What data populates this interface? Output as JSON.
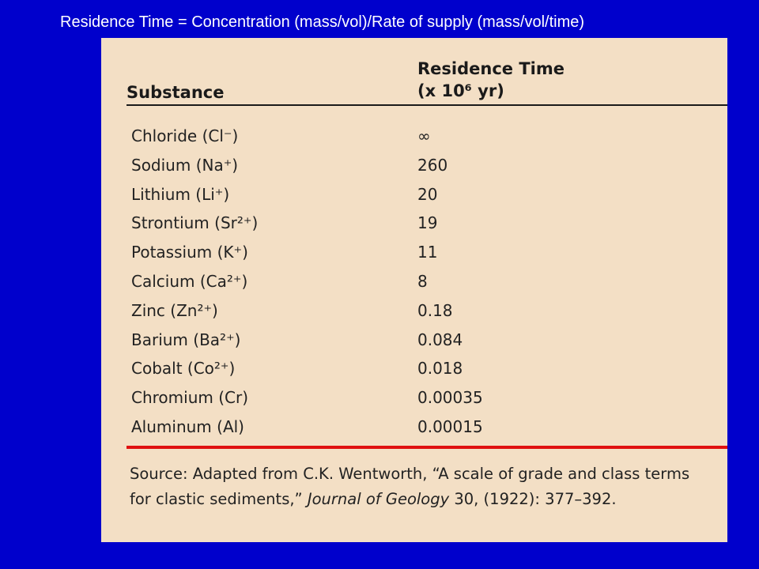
{
  "slide": {
    "title": "Residence Time = Concentration (mass/vol)/Rate of supply (mass/vol/time)"
  },
  "table": {
    "header_substance": "Substance",
    "header_residence_line1": "Residence Time",
    "header_residence_line2": "(x 10⁶ yr)",
    "rows": [
      {
        "substance": "Chloride (Cl⁻)",
        "residence": "∞"
      },
      {
        "substance": "Sodium (Na⁺)",
        "residence": "260"
      },
      {
        "substance": "Lithium (Li⁺)",
        "residence": "20"
      },
      {
        "substance": "Strontium (Sr²⁺)",
        "residence": "19"
      },
      {
        "substance": "Potassium (K⁺)",
        "residence": "11"
      },
      {
        "substance": "Calcium (Ca²⁺)",
        "residence": "8"
      },
      {
        "substance": "Zinc (Zn²⁺)",
        "residence": "0.18"
      },
      {
        "substance": "Barium (Ba²⁺)",
        "residence": "0.084"
      },
      {
        "substance": "Cobalt (Co²⁺)",
        "residence": "0.018"
      },
      {
        "substance": "Chromium (Cr)",
        "residence": "0.00035"
      },
      {
        "substance": "Aluminum (Al)",
        "residence": "0.00015"
      }
    ],
    "source_prefix": "Source: Adapted from C.K. Wentworth, “A scale of grade and class terms for clastic sediments,” ",
    "source_journal": "Journal of Geology",
    "source_suffix": " 30, (1922): 377–392."
  },
  "colors": {
    "background": "#0000cc",
    "card": "#f3dfc5",
    "divider_red": "#e01010"
  }
}
